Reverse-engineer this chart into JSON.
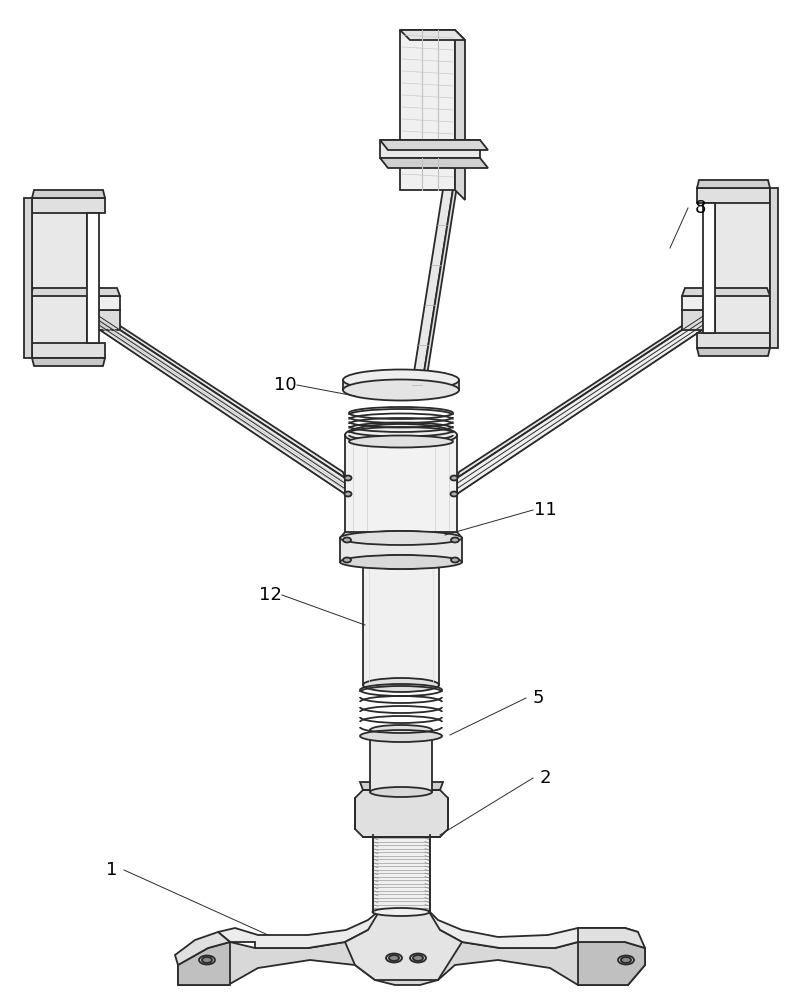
{
  "background_color": "#ffffff",
  "line_color": "#2a2a2a",
  "line_width": 1.3,
  "fig_width": 8.02,
  "fig_height": 10.0,
  "label_fontsize": 13
}
